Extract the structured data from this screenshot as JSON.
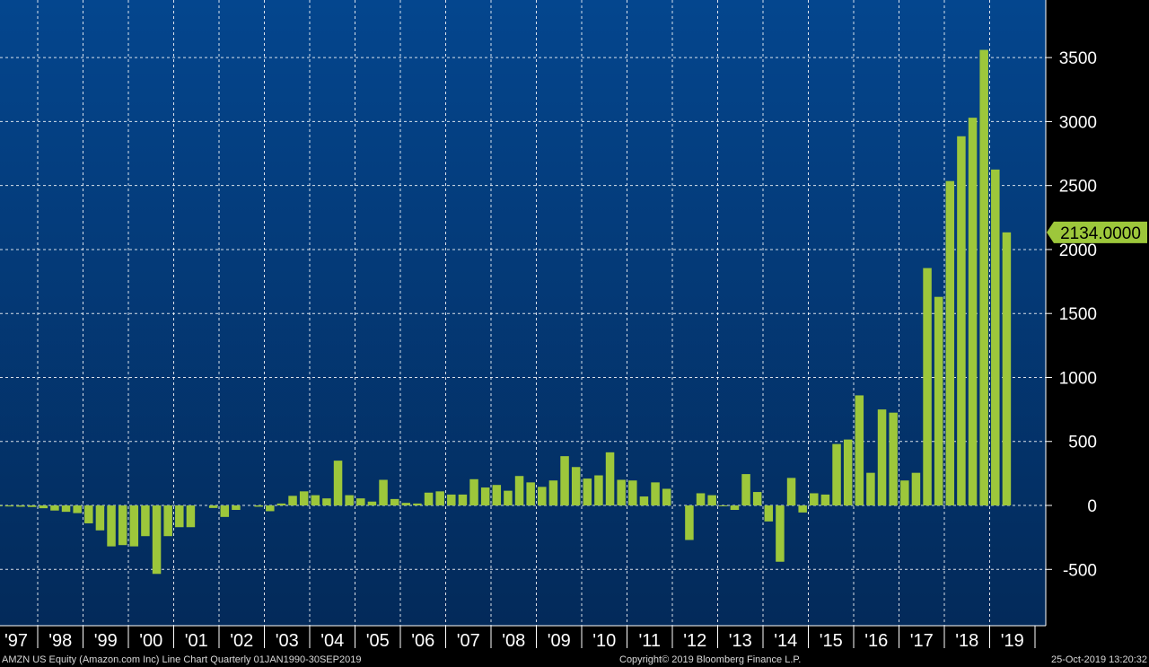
{
  "chart_data": {
    "type": "bar",
    "title": "",
    "xlabel": "",
    "ylabel": "",
    "ylim": [
      -940,
      3950
    ],
    "y_ticks": [
      -500,
      0,
      500,
      1000,
      1500,
      2000,
      2500,
      3000,
      3500
    ],
    "y_tick_labels": [
      "-500",
      "0",
      "500",
      "1000",
      "1500",
      "2000",
      "2500",
      "3000",
      "3500"
    ],
    "year_labels": [
      "'97",
      "'98",
      "'99",
      "'00",
      "'01",
      "'02",
      "'03",
      "'04",
      "'05",
      "'06",
      "'07",
      "'08",
      "'09",
      "'10",
      "'11",
      "'12",
      "'13",
      "'14",
      "'15",
      "'16",
      "'17",
      "'18",
      "'19"
    ],
    "grid": true,
    "series": [
      {
        "color": "#9dc73b",
        "values": [
          -5,
          -8,
          -10,
          -12,
          -22,
          -40,
          -50,
          -60,
          -140,
          -195,
          -320,
          -310,
          -320,
          -240,
          -535,
          -240,
          -170,
          -170,
          0,
          -20,
          -90,
          -35,
          0,
          -10,
          -45,
          15,
          75,
          110,
          80,
          55,
          350,
          80,
          55,
          30,
          200,
          50,
          20,
          15,
          100,
          110,
          85,
          85,
          205,
          140,
          160,
          115,
          230,
          180,
          145,
          195,
          385,
          300,
          210,
          235,
          415,
          200,
          195,
          70,
          180,
          130,
          0,
          -270,
          95,
          80,
          -5,
          -35,
          245,
          105,
          -125,
          -440,
          215,
          -55,
          95,
          85,
          480,
          515,
          860,
          255,
          750,
          725,
          195,
          255,
          1855,
          1630,
          2535,
          2885,
          3030,
          3560,
          2625,
          2134
        ]
      }
    ],
    "last_value_label": "2134.0000"
  },
  "footer": {
    "left": "AMZN US Equity (Amazon.com Inc) Line Chart  Quarterly 01JAN1990-30SEP2019",
    "center": "Copyright© 2019 Bloomberg Finance L.P.",
    "right": "25-Oct-2019 13:20:32"
  },
  "colors": {
    "background_top": "#04468e",
    "background_bottom": "#032a5a",
    "bar": "#9dc73b",
    "grid": "#ffffff",
    "axis_text": "#ffffff",
    "label_box": "#9dc73b"
  }
}
